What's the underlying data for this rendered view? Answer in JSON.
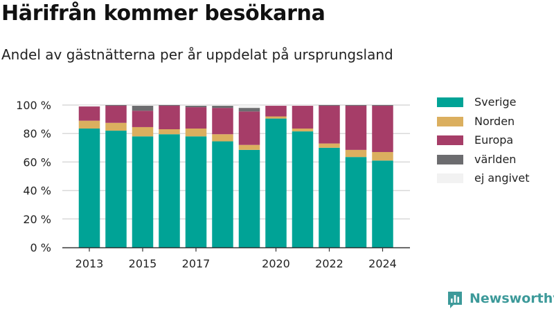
{
  "header": {
    "title": "Härifrån kommer besökarna",
    "subtitle": "Andel av gästnätterna per år uppdelat på ursprungsland"
  },
  "chart_data": {
    "type": "bar",
    "stacked": true,
    "categories": [
      "2013",
      "2014",
      "2015",
      "2016",
      "2017",
      "2018",
      "2019",
      "2020",
      "2021",
      "2022",
      "2023",
      "2024"
    ],
    "x_tick_labels": [
      "2013",
      "2015",
      "2017",
      "2020",
      "2022",
      "2024"
    ],
    "y_tick_labels": [
      "0 %",
      "20 %",
      "40 %",
      "60 %",
      "80 %",
      "100 %"
    ],
    "ylim": [
      0,
      100
    ],
    "grid": "horizontal",
    "legend_position": "right",
    "series": [
      {
        "name": "Sverige",
        "color": "#00a396",
        "values": [
          83.5,
          82,
          78,
          79.5,
          78,
          74.5,
          68.5,
          90.5,
          81.5,
          70,
          63.5,
          61
        ]
      },
      {
        "name": "Norden",
        "color": "#dbaf5f",
        "values": [
          5.5,
          5.5,
          6.5,
          3.5,
          5.5,
          5,
          3.5,
          1.5,
          2,
          3,
          5,
          6
        ]
      },
      {
        "name": "Europa",
        "color": "#a63d68",
        "values": [
          10,
          12,
          11.5,
          16.5,
          15,
          18.5,
          23.5,
          7.5,
          16,
          26.5,
          31,
          32.5
        ]
      },
      {
        "name": "världen",
        "color": "#6c6c6f",
        "values": [
          0,
          0.5,
          3.5,
          0.5,
          1,
          1.5,
          2.5,
          0,
          0,
          0.5,
          0.5,
          0.5
        ]
      },
      {
        "name": "ej angivet",
        "color": "#f2f2f2",
        "values": [
          1,
          0,
          0.5,
          0,
          0.5,
          0.5,
          2,
          0.5,
          0.5,
          0,
          0,
          0
        ]
      }
    ]
  },
  "brand": {
    "name": "Newsworthy",
    "icon": "newsworthy-logo-icon",
    "color": "#3d9a9a"
  }
}
